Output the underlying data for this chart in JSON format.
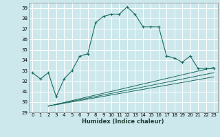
{
  "xlabel": "Humidex (Indice chaleur)",
  "ylabel": "",
  "background_color": "#cce8ec",
  "grid_color": "#ffffff",
  "line_color": "#1a6b5e",
  "xlim": [
    -0.5,
    23.5
  ],
  "ylim": [
    29,
    39.5
  ],
  "yticks": [
    29,
    30,
    31,
    32,
    33,
    34,
    35,
    36,
    37,
    38,
    39
  ],
  "xticks": [
    0,
    1,
    2,
    3,
    4,
    5,
    6,
    7,
    8,
    9,
    10,
    11,
    12,
    13,
    14,
    15,
    16,
    17,
    18,
    19,
    20,
    21,
    22,
    23
  ],
  "main_series": {
    "x": [
      0,
      1,
      2,
      3,
      4,
      5,
      6,
      7,
      8,
      9,
      10,
      11,
      12,
      13,
      14,
      15,
      16,
      17,
      18,
      19,
      20,
      21,
      22,
      23
    ],
    "y": [
      32.8,
      32.2,
      32.8,
      30.5,
      32.2,
      33.0,
      34.4,
      34.6,
      37.6,
      38.2,
      38.4,
      38.4,
      39.1,
      38.4,
      37.2,
      37.2,
      37.2,
      34.4,
      34.2,
      33.8,
      34.4,
      33.2,
      33.2,
      33.2
    ]
  },
  "lower_lines": [
    {
      "x": [
        2,
        23
      ],
      "y": [
        29.6,
        33.3
      ]
    },
    {
      "x": [
        2,
        23
      ],
      "y": [
        29.6,
        32.8
      ]
    },
    {
      "x": [
        2,
        23
      ],
      "y": [
        29.6,
        32.4
      ]
    }
  ]
}
